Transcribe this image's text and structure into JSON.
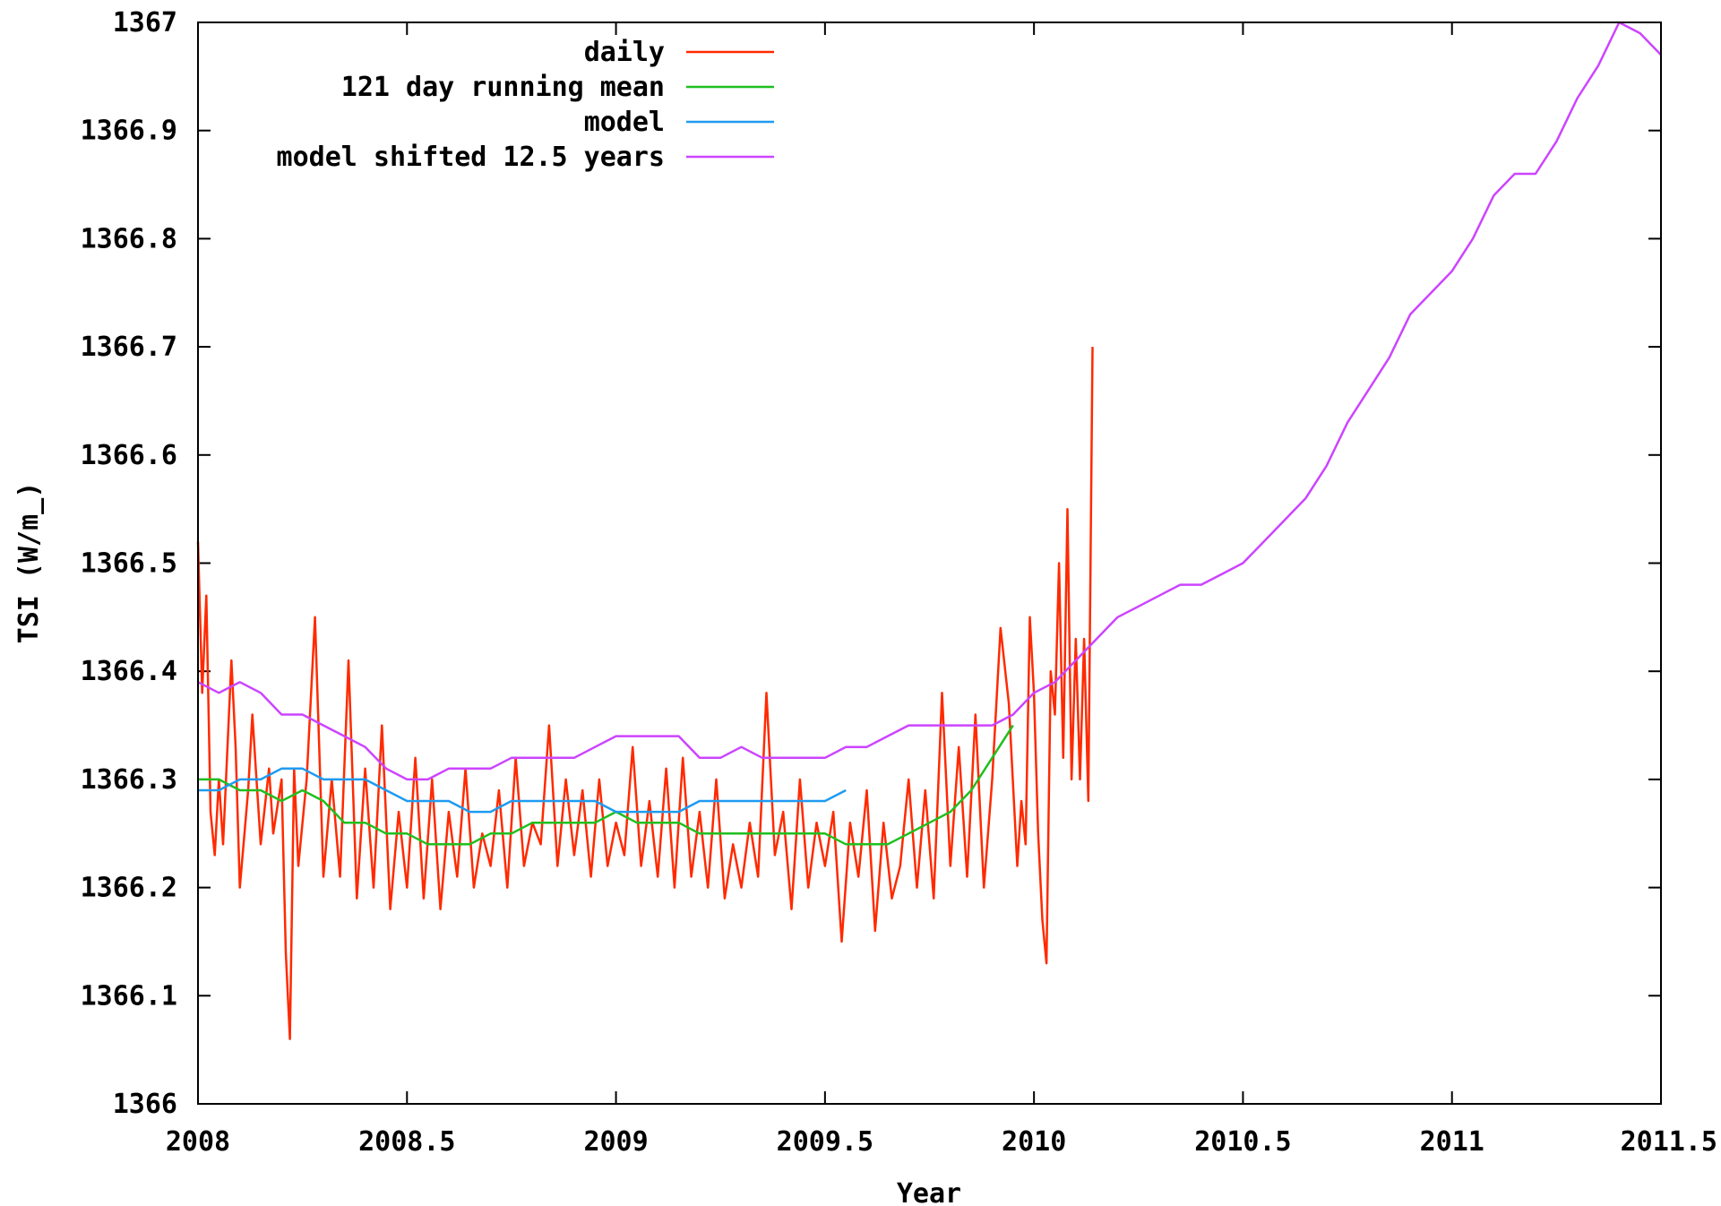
{
  "chart_data": {
    "type": "line",
    "xlabel": "Year",
    "ylabel": "TSI (W/m_)",
    "xlim": [
      2008,
      2011.5
    ],
    "ylim": [
      1366,
      1367
    ],
    "xticks": [
      2008,
      2008.5,
      2009,
      2009.5,
      2010,
      2010.5,
      2011,
      2011.5
    ],
    "xtick_labels": [
      "2008",
      "2008.5",
      "2009",
      "2009.5",
      "2010",
      "2010.5",
      "2011",
      "2011.5"
    ],
    "yticks": [
      1366,
      1366.1,
      1366.2,
      1366.3,
      1366.4,
      1366.5,
      1366.6,
      1366.7,
      1366.8,
      1366.9,
      1367
    ],
    "ytick_labels": [
      "1366",
      "1366.1",
      "1366.2",
      "1366.3",
      "1366.4",
      "1366.5",
      "1366.6",
      "1366.7",
      "1366.8",
      "1366.9",
      "1367"
    ],
    "grid": false,
    "legend_position": "top-left",
    "series": [
      {
        "name": "daily",
        "color": "#ff2a00",
        "x": [
          2008.0,
          2008.01,
          2008.02,
          2008.03,
          2008.04,
          2008.05,
          2008.06,
          2008.08,
          2008.09,
          2008.1,
          2008.12,
          2008.13,
          2008.14,
          2008.15,
          2008.17,
          2008.18,
          2008.2,
          2008.21,
          2008.22,
          2008.23,
          2008.24,
          2008.26,
          2008.28,
          2008.3,
          2008.32,
          2008.34,
          2008.36,
          2008.38,
          2008.4,
          2008.42,
          2008.44,
          2008.46,
          2008.48,
          2008.5,
          2008.52,
          2008.54,
          2008.56,
          2008.58,
          2008.6,
          2008.62,
          2008.64,
          2008.66,
          2008.68,
          2008.7,
          2008.72,
          2008.74,
          2008.76,
          2008.78,
          2008.8,
          2008.82,
          2008.84,
          2008.86,
          2008.88,
          2008.9,
          2008.92,
          2008.94,
          2008.96,
          2008.98,
          2009.0,
          2009.02,
          2009.04,
          2009.06,
          2009.08,
          2009.1,
          2009.12,
          2009.14,
          2009.16,
          2009.18,
          2009.2,
          2009.22,
          2009.24,
          2009.26,
          2009.28,
          2009.3,
          2009.32,
          2009.34,
          2009.36,
          2009.38,
          2009.4,
          2009.42,
          2009.44,
          2009.46,
          2009.48,
          2009.5,
          2009.52,
          2009.54,
          2009.56,
          2009.58,
          2009.6,
          2009.62,
          2009.64,
          2009.66,
          2009.68,
          2009.7,
          2009.72,
          2009.74,
          2009.76,
          2009.78,
          2009.8,
          2009.82,
          2009.84,
          2009.86,
          2009.88,
          2009.9,
          2009.92,
          2009.94,
          2009.96,
          2009.97,
          2009.98,
          2009.99,
          2010.0,
          2010.01,
          2010.02,
          2010.03,
          2010.04,
          2010.05,
          2010.06,
          2010.07,
          2010.08,
          2010.09,
          2010.1,
          2010.11,
          2010.12,
          2010.13,
          2010.14
        ],
        "values": [
          1366.52,
          1366.38,
          1366.47,
          1366.27,
          1366.23,
          1366.3,
          1366.24,
          1366.41,
          1366.33,
          1366.2,
          1366.29,
          1366.36,
          1366.3,
          1366.24,
          1366.31,
          1366.25,
          1366.3,
          1366.14,
          1366.06,
          1366.31,
          1366.22,
          1366.3,
          1366.45,
          1366.21,
          1366.3,
          1366.21,
          1366.41,
          1366.19,
          1366.31,
          1366.2,
          1366.35,
          1366.18,
          1366.27,
          1366.2,
          1366.32,
          1366.19,
          1366.3,
          1366.18,
          1366.27,
          1366.21,
          1366.31,
          1366.2,
          1366.25,
          1366.22,
          1366.29,
          1366.2,
          1366.32,
          1366.22,
          1366.26,
          1366.24,
          1366.35,
          1366.22,
          1366.3,
          1366.23,
          1366.29,
          1366.21,
          1366.3,
          1366.22,
          1366.26,
          1366.23,
          1366.33,
          1366.22,
          1366.28,
          1366.21,
          1366.31,
          1366.2,
          1366.32,
          1366.21,
          1366.27,
          1366.2,
          1366.3,
          1366.19,
          1366.24,
          1366.2,
          1366.26,
          1366.21,
          1366.38,
          1366.23,
          1366.27,
          1366.18,
          1366.3,
          1366.2,
          1366.26,
          1366.22,
          1366.27,
          1366.15,
          1366.26,
          1366.21,
          1366.29,
          1366.16,
          1366.26,
          1366.19,
          1366.22,
          1366.3,
          1366.2,
          1366.29,
          1366.19,
          1366.38,
          1366.22,
          1366.33,
          1366.21,
          1366.36,
          1366.2,
          1366.3,
          1366.44,
          1366.37,
          1366.22,
          1366.28,
          1366.24,
          1366.45,
          1366.38,
          1366.25,
          1366.17,
          1366.13,
          1366.4,
          1366.36,
          1366.5,
          1366.32,
          1366.55,
          1366.3,
          1366.43,
          1366.3,
          1366.43,
          1366.28,
          1366.7
        ]
      },
      {
        "name": "121 day running mean",
        "color": "#1fbf1f",
        "x": [
          2008.0,
          2008.05,
          2008.1,
          2008.15,
          2008.2,
          2008.25,
          2008.3,
          2008.35,
          2008.4,
          2008.45,
          2008.5,
          2008.55,
          2008.6,
          2008.65,
          2008.7,
          2008.75,
          2008.8,
          2008.85,
          2008.9,
          2008.95,
          2009.0,
          2009.05,
          2009.1,
          2009.15,
          2009.2,
          2009.25,
          2009.3,
          2009.35,
          2009.4,
          2009.45,
          2009.5,
          2009.55,
          2009.6,
          2009.65,
          2009.7,
          2009.75,
          2009.8,
          2009.85,
          2009.9,
          2009.95
        ],
        "values": [
          1366.3,
          1366.3,
          1366.29,
          1366.29,
          1366.28,
          1366.29,
          1366.28,
          1366.26,
          1366.26,
          1366.25,
          1366.25,
          1366.24,
          1366.24,
          1366.24,
          1366.25,
          1366.25,
          1366.26,
          1366.26,
          1366.26,
          1366.26,
          1366.27,
          1366.26,
          1366.26,
          1366.26,
          1366.25,
          1366.25,
          1366.25,
          1366.25,
          1366.25,
          1366.25,
          1366.25,
          1366.24,
          1366.24,
          1366.24,
          1366.25,
          1366.26,
          1366.27,
          1366.29,
          1366.32,
          1366.35
        ]
      },
      {
        "name": "model",
        "color": "#1e9bf0",
        "x": [
          2008.0,
          2008.05,
          2008.1,
          2008.15,
          2008.2,
          2008.25,
          2008.3,
          2008.35,
          2008.4,
          2008.45,
          2008.5,
          2008.55,
          2008.6,
          2008.65,
          2008.7,
          2008.75,
          2008.8,
          2008.85,
          2008.9,
          2008.95,
          2009.0,
          2009.05,
          2009.1,
          2009.15,
          2009.2,
          2009.25,
          2009.3,
          2009.35,
          2009.4,
          2009.45,
          2009.5,
          2009.55
        ],
        "values": [
          1366.29,
          1366.29,
          1366.3,
          1366.3,
          1366.31,
          1366.31,
          1366.3,
          1366.3,
          1366.3,
          1366.29,
          1366.28,
          1366.28,
          1366.28,
          1366.27,
          1366.27,
          1366.28,
          1366.28,
          1366.28,
          1366.28,
          1366.28,
          1366.27,
          1366.27,
          1366.27,
          1366.27,
          1366.28,
          1366.28,
          1366.28,
          1366.28,
          1366.28,
          1366.28,
          1366.28,
          1366.29
        ]
      },
      {
        "name": "model shifted 12.5 years",
        "color": "#cc44ff",
        "x": [
          2008.0,
          2008.05,
          2008.1,
          2008.15,
          2008.2,
          2008.25,
          2008.3,
          2008.35,
          2008.4,
          2008.45,
          2008.5,
          2008.55,
          2008.6,
          2008.65,
          2008.7,
          2008.75,
          2008.8,
          2008.85,
          2008.9,
          2008.95,
          2009.0,
          2009.05,
          2009.1,
          2009.15,
          2009.2,
          2009.25,
          2009.3,
          2009.35,
          2009.4,
          2009.45,
          2009.5,
          2009.55,
          2009.6,
          2009.65,
          2009.7,
          2009.75,
          2009.8,
          2009.85,
          2009.9,
          2009.95,
          2010.0,
          2010.05,
          2010.1,
          2010.15,
          2010.2,
          2010.25,
          2010.3,
          2010.35,
          2010.4,
          2010.45,
          2010.5,
          2010.55,
          2010.6,
          2010.65,
          2010.7,
          2010.75,
          2010.8,
          2010.85,
          2010.9,
          2010.95,
          2011.0,
          2011.05,
          2011.1,
          2011.15,
          2011.2,
          2011.25,
          2011.3,
          2011.35,
          2011.4,
          2011.45,
          2011.5
        ],
        "values": [
          1366.39,
          1366.38,
          1366.39,
          1366.38,
          1366.36,
          1366.36,
          1366.35,
          1366.34,
          1366.33,
          1366.31,
          1366.3,
          1366.3,
          1366.31,
          1366.31,
          1366.31,
          1366.32,
          1366.32,
          1366.32,
          1366.32,
          1366.33,
          1366.34,
          1366.34,
          1366.34,
          1366.34,
          1366.32,
          1366.32,
          1366.33,
          1366.32,
          1366.32,
          1366.32,
          1366.32,
          1366.33,
          1366.33,
          1366.34,
          1366.35,
          1366.35,
          1366.35,
          1366.35,
          1366.35,
          1366.36,
          1366.38,
          1366.39,
          1366.41,
          1366.43,
          1366.45,
          1366.46,
          1366.47,
          1366.48,
          1366.48,
          1366.49,
          1366.5,
          1366.52,
          1366.54,
          1366.56,
          1366.59,
          1366.63,
          1366.66,
          1366.69,
          1366.73,
          1366.75,
          1366.77,
          1366.8,
          1366.84,
          1366.86,
          1366.86,
          1366.89,
          1366.93,
          1366.96,
          1367.0,
          1366.99,
          1366.97
        ]
      }
    ]
  }
}
